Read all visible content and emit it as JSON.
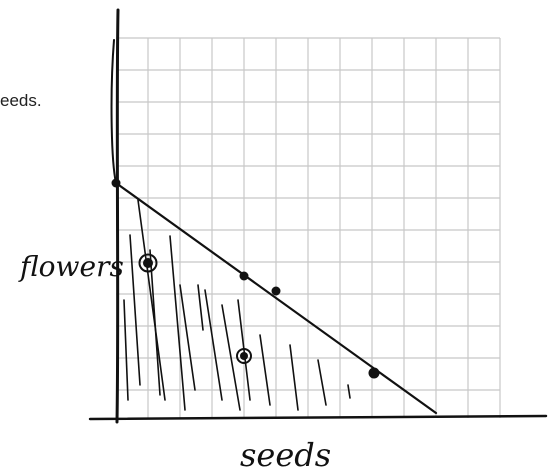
{
  "labels": {
    "cut_text": "eeds.",
    "y_axis": "flowers",
    "x_axis": "seeds"
  }
}
